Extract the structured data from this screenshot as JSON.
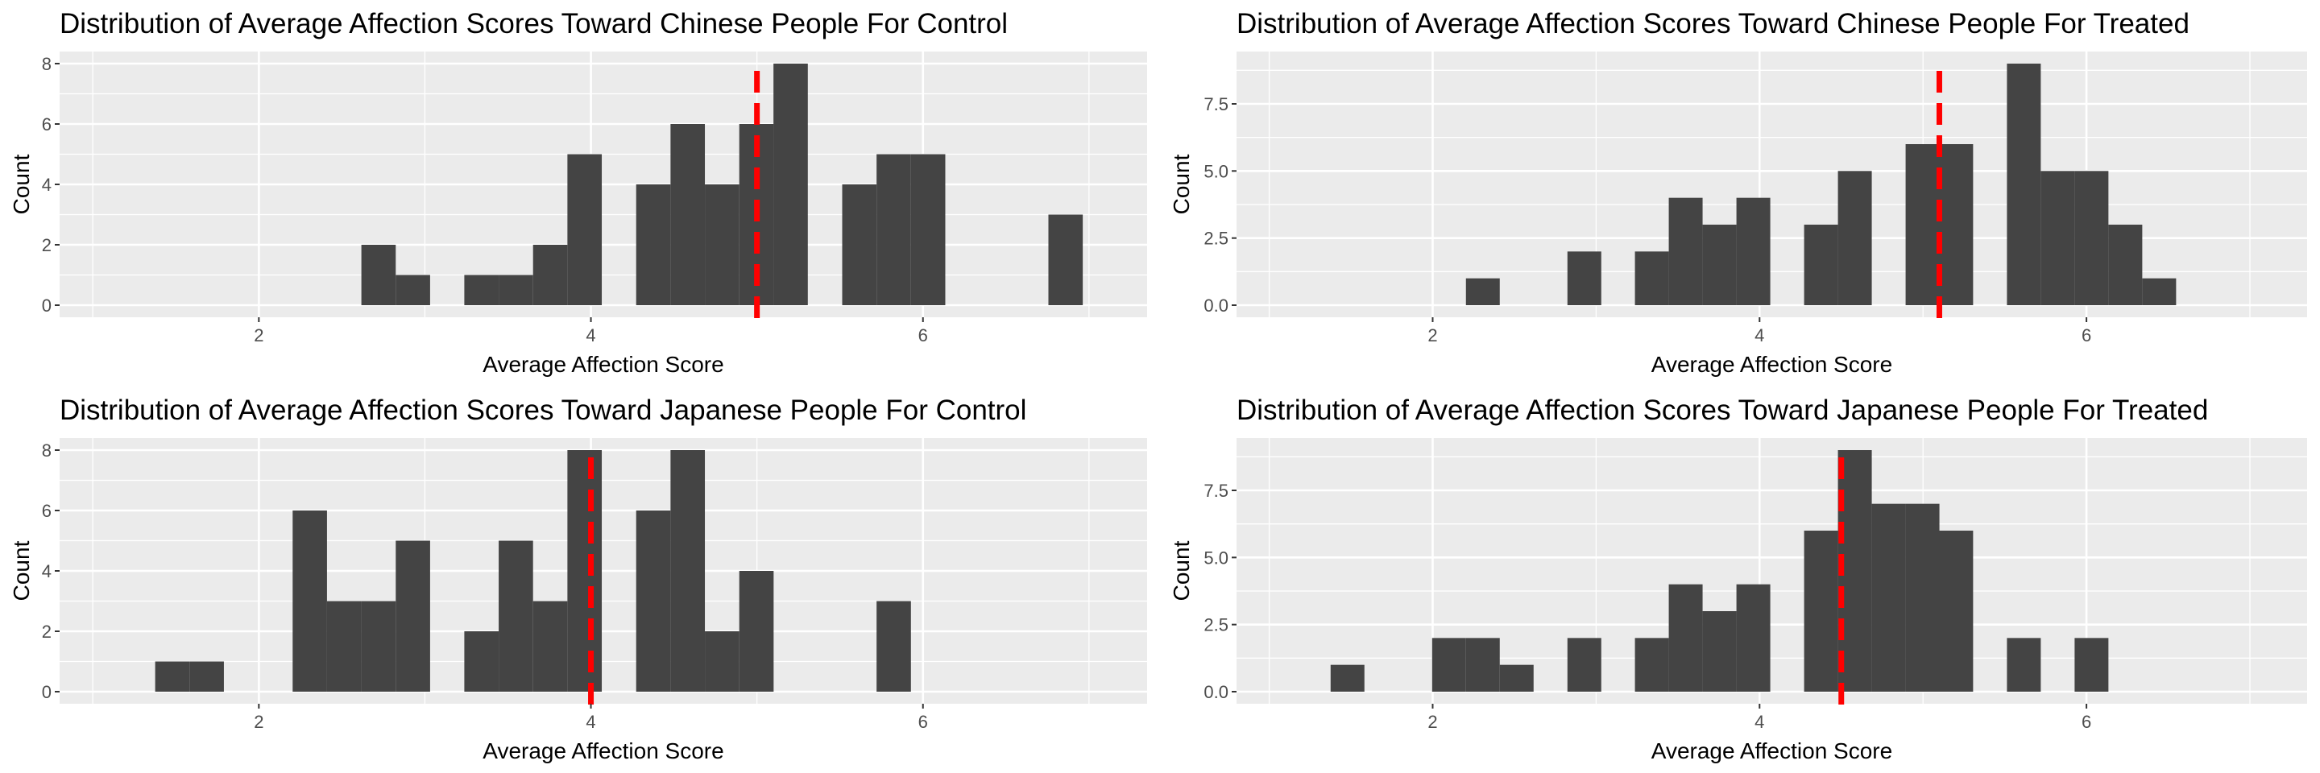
{
  "chart_data": [
    {
      "type": "bar",
      "title": "Distribution of Average Affection Scores Toward Chinese People For Control",
      "xlabel": "Average Affection Score",
      "ylabel": "Count",
      "xlim": [
        0.8,
        7.35
      ],
      "ylim": [
        -0.4,
        8.4
      ],
      "xticks": [
        2,
        4,
        6
      ],
      "yticks": [
        0,
        2,
        4,
        6,
        8
      ],
      "ytick_labels": [
        "0",
        "2",
        "4",
        "6",
        "8"
      ],
      "bin_width": 0.2069,
      "bins": [
        {
          "x": 2.721,
          "count": 2
        },
        {
          "x": 2.928,
          "count": 1
        },
        {
          "x": 3.341,
          "count": 1
        },
        {
          "x": 3.548,
          "count": 1
        },
        {
          "x": 3.755,
          "count": 2
        },
        {
          "x": 3.962,
          "count": 5
        },
        {
          "x": 4.376,
          "count": 4
        },
        {
          "x": 4.583,
          "count": 6
        },
        {
          "x": 4.79,
          "count": 4
        },
        {
          "x": 4.997,
          "count": 6
        },
        {
          "x": 5.203,
          "count": 8
        },
        {
          "x": 5.617,
          "count": 4
        },
        {
          "x": 5.824,
          "count": 5
        },
        {
          "x": 6.031,
          "count": 5
        },
        {
          "x": 6.859,
          "count": 3
        }
      ],
      "mean_line": 5.0,
      "grid": true,
      "colors": {
        "bar": "#444444",
        "mean": "#ff0000",
        "panel": "#ebebeb"
      }
    },
    {
      "type": "bar",
      "title": "Distribution of Average Affection Scores Toward Chinese People For Treated",
      "xlabel": "Average Affection Score",
      "ylabel": "Count",
      "xlim": [
        0.8,
        7.35
      ],
      "ylim": [
        -0.45,
        9.45
      ],
      "xticks": [
        2,
        4,
        6
      ],
      "yticks": [
        0,
        2.5,
        5,
        7.5
      ],
      "ytick_labels": [
        "0.0",
        "2.5",
        "5.0",
        "7.5"
      ],
      "bin_width": 0.2069,
      "bins": [
        {
          "x": 2.307,
          "count": 1
        },
        {
          "x": 2.928,
          "count": 2
        },
        {
          "x": 3.341,
          "count": 2
        },
        {
          "x": 3.548,
          "count": 4
        },
        {
          "x": 3.755,
          "count": 3
        },
        {
          "x": 3.962,
          "count": 4
        },
        {
          "x": 4.376,
          "count": 3
        },
        {
          "x": 4.583,
          "count": 5
        },
        {
          "x": 4.997,
          "count": 6
        },
        {
          "x": 5.203,
          "count": 6
        },
        {
          "x": 5.617,
          "count": 9
        },
        {
          "x": 5.824,
          "count": 5
        },
        {
          "x": 6.031,
          "count": 5
        },
        {
          "x": 6.238,
          "count": 3
        },
        {
          "x": 6.445,
          "count": 1
        }
      ],
      "mean_line": 5.1,
      "grid": true,
      "colors": {
        "bar": "#444444",
        "mean": "#ff0000",
        "panel": "#ebebeb"
      }
    },
    {
      "type": "bar",
      "title": "Distribution of Average Affection Scores Toward Japanese People For Control",
      "xlabel": "Average Affection Score",
      "ylabel": "Count",
      "xlim": [
        0.8,
        7.35
      ],
      "ylim": [
        -0.4,
        8.4
      ],
      "xticks": [
        2,
        4,
        6
      ],
      "yticks": [
        0,
        2,
        4,
        6,
        8
      ],
      "ytick_labels": [
        "0",
        "2",
        "4",
        "6",
        "8"
      ],
      "bin_width": 0.2069,
      "bins": [
        {
          "x": 1.479,
          "count": 1
        },
        {
          "x": 1.686,
          "count": 1
        },
        {
          "x": 2.307,
          "count": 6
        },
        {
          "x": 2.514,
          "count": 3
        },
        {
          "x": 2.721,
          "count": 3
        },
        {
          "x": 2.928,
          "count": 5
        },
        {
          "x": 3.341,
          "count": 2
        },
        {
          "x": 3.548,
          "count": 5
        },
        {
          "x": 3.755,
          "count": 3
        },
        {
          "x": 3.962,
          "count": 8
        },
        {
          "x": 4.376,
          "count": 6
        },
        {
          "x": 4.583,
          "count": 8
        },
        {
          "x": 4.79,
          "count": 2
        },
        {
          "x": 4.997,
          "count": 4
        },
        {
          "x": 5.824,
          "count": 3
        }
      ],
      "mean_line": 4.0,
      "grid": true,
      "colors": {
        "bar": "#444444",
        "mean": "#ff0000",
        "panel": "#ebebeb"
      }
    },
    {
      "type": "bar",
      "title": "Distribution of Average Affection Scores Toward Japanese People For Treated",
      "xlabel": "Average Affection Score",
      "ylabel": "Count",
      "xlim": [
        0.8,
        7.35
      ],
      "ylim": [
        -0.45,
        9.45
      ],
      "xticks": [
        2,
        4,
        6
      ],
      "yticks": [
        0,
        2.5,
        5,
        7.5
      ],
      "ytick_labels": [
        "0.0",
        "2.5",
        "5.0",
        "7.5"
      ],
      "bin_width": 0.2069,
      "bins": [
        {
          "x": 1.479,
          "count": 1
        },
        {
          "x": 2.1,
          "count": 2
        },
        {
          "x": 2.307,
          "count": 2
        },
        {
          "x": 2.514,
          "count": 1
        },
        {
          "x": 2.928,
          "count": 2
        },
        {
          "x": 3.341,
          "count": 2
        },
        {
          "x": 3.548,
          "count": 4
        },
        {
          "x": 3.755,
          "count": 3
        },
        {
          "x": 3.962,
          "count": 4
        },
        {
          "x": 4.376,
          "count": 6
        },
        {
          "x": 4.583,
          "count": 9
        },
        {
          "x": 4.79,
          "count": 7
        },
        {
          "x": 4.997,
          "count": 7
        },
        {
          "x": 5.203,
          "count": 6
        },
        {
          "x": 5.617,
          "count": 2
        },
        {
          "x": 6.031,
          "count": 2
        }
      ],
      "mean_line": 4.5,
      "grid": true,
      "colors": {
        "bar": "#444444",
        "mean": "#ff0000",
        "panel": "#ebebeb"
      }
    }
  ]
}
